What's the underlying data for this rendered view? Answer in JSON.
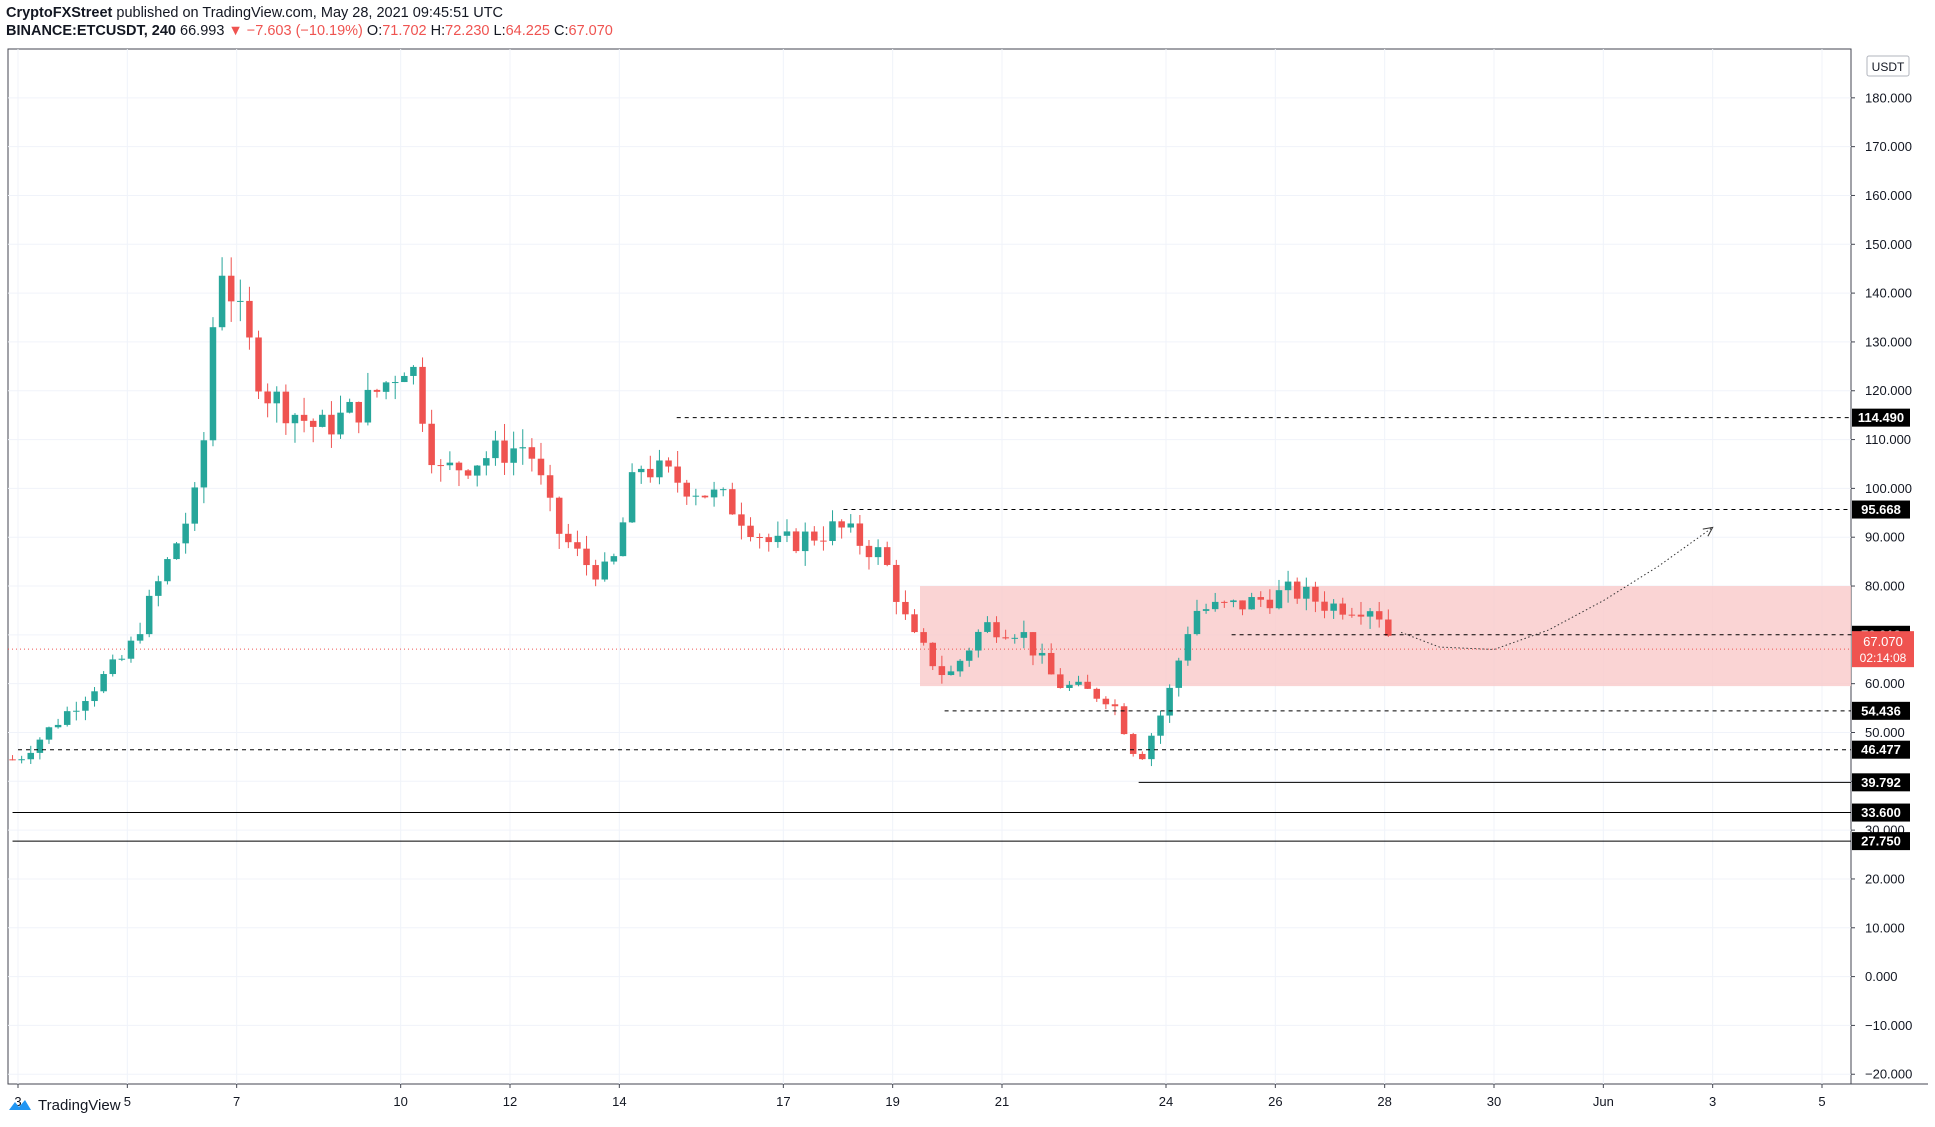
{
  "header": {
    "publisher": "CryptoFXStreet",
    "published_text": "published on TradingView.com, May 28, 2021 09:45:51 UTC",
    "symbol": "BINANCE:ETCUSDT, 240",
    "last": "66.993",
    "change": "▼ −7.603 (−10.19%)",
    "o_label": "O:",
    "o": "71.702",
    "h_label": "H:",
    "h": "72.230",
    "l_label": "L:",
    "l": "64.225",
    "c_label": "C:",
    "c": "67.070"
  },
  "brand": {
    "name": "TradingView"
  },
  "colors": {
    "up": "#26a69a",
    "down": "#ef5350",
    "zone": "#f9c9c9",
    "grid": "#f0f3fa",
    "axis_text": "#131722",
    "label_bg": "#000000",
    "price_label_bg": "#ef5350"
  },
  "chart_data": {
    "type": "candlestick",
    "title": "BINANCE:ETCUSDT, 240",
    "currency": "USDT",
    "x_ticks": [
      {
        "label": "3",
        "day": 3
      },
      {
        "label": "5",
        "day": 5
      },
      {
        "label": "7",
        "day": 7
      },
      {
        "label": "10",
        "day": 10
      },
      {
        "label": "12",
        "day": 12
      },
      {
        "label": "14",
        "day": 14
      },
      {
        "label": "17",
        "day": 17
      },
      {
        "label": "19",
        "day": 19
      },
      {
        "label": "21",
        "day": 21
      },
      {
        "label": "24",
        "day": 24
      },
      {
        "label": "26",
        "day": 26
      },
      {
        "label": "28",
        "day": 28
      },
      {
        "label": "30",
        "day": 30
      },
      {
        "label": "Jun",
        "day": 32
      },
      {
        "label": "3",
        "day": 34
      },
      {
        "label": "5",
        "day": 36
      }
    ],
    "y_ticks": [
      "180.000",
      "170.000",
      "160.000",
      "150.000",
      "140.000",
      "130.000",
      "120.000",
      "110.000",
      "100.000",
      "90.000",
      "80.000",
      "70.000",
      "60.000",
      "50.000",
      "40.000",
      "30.000",
      "20.000",
      "10.000",
      "0.000",
      "−10.000",
      "−20.000"
    ],
    "ylim": [
      -22,
      190
    ],
    "grid": true,
    "highlight_zone": {
      "from_day": 19.5,
      "y_low": 59.5,
      "y_high": 80
    },
    "levels": [
      {
        "value": 114.49,
        "label": "114.490",
        "style": "dashed",
        "from_day": 15.05
      },
      {
        "value": 95.668,
        "label": "95.668",
        "style": "dashed",
        "from_day": 18.1
      },
      {
        "value": 70.013,
        "label": "70.013",
        "style": "dashed",
        "from_day": 25.2
      },
      {
        "value": 54.436,
        "label": "54.436",
        "style": "dashed",
        "from_day": 19.95
      },
      {
        "value": 46.477,
        "label": "46.477",
        "style": "dashed",
        "from_day": 3
      },
      {
        "value": 39.792,
        "label": "39.792",
        "style": "solid",
        "from_day": 23.5
      },
      {
        "value": 33.6,
        "label": "33.600",
        "style": "solid",
        "from_day": 2.9
      },
      {
        "value": 27.75,
        "label": "27.750",
        "style": "solid",
        "from_day": 2.9
      }
    ],
    "last_price": {
      "value": 67.07,
      "label": "67.070",
      "countdown": "02:14:08"
    },
    "projection": [
      [
        28.3,
        70.5
      ],
      [
        29,
        67.5
      ],
      [
        30,
        67
      ],
      [
        31,
        71
      ],
      [
        32,
        77
      ],
      [
        33,
        84
      ],
      [
        34,
        92
      ]
    ],
    "anchors": [
      {
        "day": 3,
        "price": 44.5
      },
      {
        "day": 5,
        "price": 66
      },
      {
        "day": 6.33,
        "price": 100
      },
      {
        "day": 6.67,
        "price": 148
      },
      {
        "day": 7.5,
        "price": 120
      },
      {
        "day": 8.5,
        "price": 112
      },
      {
        "day": 9.33,
        "price": 117
      },
      {
        "day": 10.17,
        "price": 127
      },
      {
        "day": 10.67,
        "price": 103
      },
      {
        "day": 11.67,
        "price": 107
      },
      {
        "day": 12.33,
        "price": 109
      },
      {
        "day": 12.83,
        "price": 92
      },
      {
        "day": 13.33,
        "price": 85
      },
      {
        "day": 13.83,
        "price": 82
      },
      {
        "day": 14.33,
        "price": 105
      },
      {
        "day": 15,
        "price": 102
      },
      {
        "day": 16,
        "price": 97
      },
      {
        "day": 16.83,
        "price": 88
      },
      {
        "day": 18,
        "price": 92
      },
      {
        "day": 18.83,
        "price": 86
      },
      {
        "day": 19.33,
        "price": 70
      },
      {
        "day": 20,
        "price": 61
      },
      {
        "day": 20.67,
        "price": 72
      },
      {
        "day": 21.33,
        "price": 71
      },
      {
        "day": 22,
        "price": 60
      },
      {
        "day": 23,
        "price": 57
      },
      {
        "day": 23.5,
        "price": 44
      },
      {
        "day": 24,
        "price": 56
      },
      {
        "day": 24.5,
        "price": 75
      },
      {
        "day": 25.33,
        "price": 76
      },
      {
        "day": 26.33,
        "price": 79
      },
      {
        "day": 27,
        "price": 76
      },
      {
        "day": 27.83,
        "price": 76
      },
      {
        "day": 28.2,
        "price": 67
      }
    ]
  }
}
